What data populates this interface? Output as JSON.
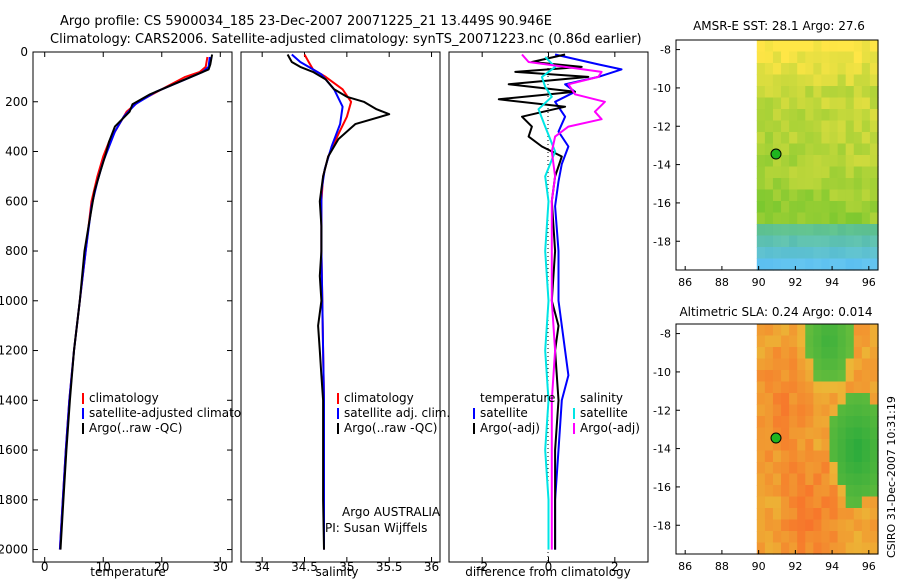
{
  "header": {
    "line1": "Argo profile: CS 5900034_185 23-Dec-2007 20071225_21 13.449S 90.946E",
    "line2": "Climatology: CARS2006. Satellite-adjusted climatology: synTS_20071223.nc (0.86d earlier)"
  },
  "colors": {
    "climatology": "#ff0000",
    "satellite": "#0000ff",
    "argo": "#000000",
    "sal_satellite": "#00e5e5",
    "sal_argo": "#ff00ff"
  },
  "chart_data": [
    {
      "id": "temperature",
      "type": "line",
      "xlabel": "temperature",
      "xlim": [
        -2,
        32
      ],
      "ylim": [
        0,
        2050
      ],
      "xticks": [
        0,
        10,
        20,
        30
      ],
      "yticks": [
        0,
        200,
        400,
        600,
        800,
        1000,
        1200,
        1400,
        1600,
        1800,
        2000
      ],
      "legend": [
        "climatology",
        "satellite-adjusted climatology",
        "Argo(..raw -QC)"
      ],
      "series": [
        {
          "name": "climatology",
          "color": "#ff0000",
          "points": [
            [
              27.8,
              20
            ],
            [
              27.5,
              60
            ],
            [
              26.5,
              80
            ],
            [
              24,
              100
            ],
            [
              20,
              150
            ],
            [
              16,
              200
            ],
            [
              14,
              240
            ],
            [
              12.5,
              300
            ],
            [
              11,
              360
            ],
            [
              10,
              420
            ],
            [
              9,
              500
            ],
            [
              8,
              600
            ],
            [
              7,
              800
            ],
            [
              6,
              1000
            ],
            [
              5,
              1200
            ],
            [
              4.2,
              1400
            ],
            [
              3.6,
              1600
            ],
            [
              3.1,
              1800
            ],
            [
              2.6,
              2000
            ]
          ]
        },
        {
          "name": "satellite-adjusted climatology",
          "color": "#0000ff",
          "points": [
            [
              28.2,
              20
            ],
            [
              28,
              60
            ],
            [
              27,
              80
            ],
            [
              24,
              110
            ],
            [
              19,
              160
            ],
            [
              15.5,
              210
            ],
            [
              13.5,
              260
            ],
            [
              12,
              320
            ],
            [
              11,
              380
            ],
            [
              10,
              440
            ],
            [
              9,
              520
            ],
            [
              8,
              620
            ],
            [
              7,
              800
            ],
            [
              6,
              1000
            ],
            [
              5,
              1200
            ],
            [
              4.2,
              1400
            ],
            [
              3.6,
              1600
            ],
            [
              3.1,
              1800
            ],
            [
              2.6,
              2000
            ]
          ]
        },
        {
          "name": "Argo(..raw -QC)",
          "color": "#000000",
          "points": [
            [
              28.6,
              10
            ],
            [
              28.3,
              50
            ],
            [
              28,
              70
            ],
            [
              26,
              90
            ],
            [
              22,
              130
            ],
            [
              18,
              170
            ],
            [
              15,
              210
            ],
            [
              14.5,
              240
            ],
            [
              12,
              300
            ],
            [
              11,
              360
            ],
            [
              10.3,
              420
            ],
            [
              9.5,
              480
            ],
            [
              8.5,
              560
            ],
            [
              7.5,
              700
            ],
            [
              6.8,
              800
            ],
            [
              6,
              1000
            ],
            [
              5,
              1200
            ],
            [
              4.3,
              1400
            ],
            [
              3.7,
              1600
            ],
            [
              3.2,
              1800
            ],
            [
              2.7,
              2000
            ]
          ]
        }
      ]
    },
    {
      "id": "salinity",
      "type": "line",
      "xlabel": "salinity",
      "xlim": [
        33.75,
        36.1
      ],
      "ylim": [
        0,
        2050
      ],
      "xticks": [
        34,
        34.5,
        35,
        35.5,
        36
      ],
      "legend": [
        "climatology",
        "satellite adj. clim.",
        "Argo(..raw -QC)"
      ],
      "series": [
        {
          "name": "climatology",
          "color": "#ff0000",
          "points": [
            [
              34.5,
              10
            ],
            [
              34.55,
              40
            ],
            [
              34.6,
              70
            ],
            [
              34.75,
              100
            ],
            [
              34.95,
              150
            ],
            [
              35.05,
              200
            ],
            [
              35,
              260
            ],
            [
              34.9,
              330
            ],
            [
              34.78,
              420
            ],
            [
              34.72,
              500
            ],
            [
              34.7,
              600
            ],
            [
              34.7,
              800
            ],
            [
              34.71,
              1000
            ],
            [
              34.72,
              1200
            ],
            [
              34.73,
              1400
            ],
            [
              34.73,
              1600
            ],
            [
              34.73,
              1800
            ],
            [
              34.73,
              2000
            ]
          ]
        },
        {
          "name": "satellite adj. clim.",
          "color": "#0000ff",
          "points": [
            [
              34.35,
              10
            ],
            [
              34.45,
              40
            ],
            [
              34.55,
              60
            ],
            [
              34.7,
              90
            ],
            [
              34.85,
              150
            ],
            [
              34.95,
              220
            ],
            [
              34.92,
              290
            ],
            [
              34.82,
              380
            ],
            [
              34.74,
              470
            ],
            [
              34.7,
              560
            ],
            [
              34.7,
              700
            ],
            [
              34.7,
              800
            ],
            [
              34.71,
              1000
            ],
            [
              34.72,
              1200
            ],
            [
              34.73,
              1400
            ],
            [
              34.73,
              1600
            ],
            [
              34.73,
              1800
            ],
            [
              34.73,
              2000
            ]
          ]
        },
        {
          "name": "Argo(..raw -QC)",
          "color": "#000000",
          "points": [
            [
              34.3,
              10
            ],
            [
              34.35,
              40
            ],
            [
              34.45,
              60
            ],
            [
              34.6,
              80
            ],
            [
              34.75,
              110
            ],
            [
              34.85,
              150
            ],
            [
              35,
              180
            ],
            [
              35.2,
              200
            ],
            [
              35.35,
              230
            ],
            [
              35.5,
              250
            ],
            [
              35.1,
              290
            ],
            [
              34.9,
              350
            ],
            [
              34.78,
              420
            ],
            [
              34.72,
              500
            ],
            [
              34.68,
              600
            ],
            [
              34.7,
              700
            ],
            [
              34.7,
              800
            ],
            [
              34.68,
              900
            ],
            [
              34.7,
              1000
            ],
            [
              34.66,
              1100
            ],
            [
              34.68,
              1200
            ],
            [
              34.7,
              1300
            ],
            [
              34.72,
              1400
            ],
            [
              34.72,
              1600
            ],
            [
              34.72,
              1800
            ],
            [
              34.73,
              2000
            ]
          ]
        }
      ],
      "annotation": [
        "Argo AUSTRALIA",
        "PI: Susan Wijffels"
      ]
    },
    {
      "id": "difference",
      "type": "line",
      "xlabel": "difference from climatology",
      "xlim": [
        -3,
        3
      ],
      "ylim": [
        0,
        2050
      ],
      "xticks": [
        -2,
        0,
        2
      ],
      "legend_left": [
        "temperature",
        "satellite",
        "Argo(-adj)"
      ],
      "legend_right": [
        "salinity",
        "satellite",
        "Argo(-adj)"
      ],
      "series": [
        {
          "name": "temperature satellite",
          "color": "#0000ff",
          "points": [
            [
              0.2,
              10
            ],
            [
              1.5,
              50
            ],
            [
              2.2,
              70
            ],
            [
              1.5,
              100
            ],
            [
              0.5,
              130
            ],
            [
              0.8,
              160
            ],
            [
              0.2,
              200
            ],
            [
              0.5,
              260
            ],
            [
              0.3,
              320
            ],
            [
              0.6,
              380
            ],
            [
              0.4,
              450
            ],
            [
              0.3,
              520
            ],
            [
              0.2,
              620
            ],
            [
              0.3,
              800
            ],
            [
              0.3,
              1000
            ],
            [
              0.5,
              1200
            ],
            [
              0.6,
              1300
            ],
            [
              0.4,
              1400
            ],
            [
              0.3,
              1600
            ],
            [
              0.2,
              1800
            ],
            [
              0.2,
              2000
            ]
          ]
        },
        {
          "name": "temperature Argo(-adj)",
          "color": "#000000",
          "points": [
            [
              0.5,
              10
            ],
            [
              -0.5,
              40
            ],
            [
              1,
              60
            ],
            [
              -1,
              80
            ],
            [
              1.2,
              100
            ],
            [
              -1.2,
              130
            ],
            [
              0.8,
              160
            ],
            [
              -1.5,
              190
            ],
            [
              0.5,
              220
            ],
            [
              -0.8,
              260
            ],
            [
              -0.5,
              300
            ],
            [
              -0.6,
              340
            ],
            [
              -0.2,
              380
            ],
            [
              0.4,
              420
            ],
            [
              0.2,
              500
            ],
            [
              0.1,
              600
            ],
            [
              0.2,
              800
            ],
            [
              0.1,
              1000
            ],
            [
              0.3,
              1100
            ],
            [
              0.2,
              1200
            ],
            [
              0.3,
              1400
            ],
            [
              0.2,
              1600
            ],
            [
              0.2,
              1800
            ],
            [
              0.2,
              2000
            ]
          ]
        },
        {
          "name": "salinity satellite",
          "color": "#00e5e5",
          "points": [
            [
              -0.1,
              20
            ],
            [
              0.2,
              60
            ],
            [
              -0.2,
              100
            ],
            [
              -0.1,
              140
            ],
            [
              0.1,
              180
            ],
            [
              -0.3,
              230
            ],
            [
              -0.1,
              300
            ],
            [
              0.2,
              400
            ],
            [
              -0.1,
              500
            ],
            [
              0,
              600
            ],
            [
              -0.1,
              800
            ],
            [
              0,
              1000
            ],
            [
              -0.1,
              1200
            ],
            [
              0,
              1400
            ],
            [
              -0.1,
              1600
            ],
            [
              0,
              1800
            ],
            [
              0,
              2000
            ]
          ]
        },
        {
          "name": "salinity Argo(-adj)",
          "color": "#ff00ff",
          "points": [
            [
              -0.8,
              10
            ],
            [
              -0.6,
              40
            ],
            [
              0.5,
              60
            ],
            [
              1.6,
              80
            ],
            [
              1.5,
              100
            ],
            [
              0.6,
              130
            ],
            [
              0.8,
              170
            ],
            [
              1.7,
              200
            ],
            [
              1.4,
              240
            ],
            [
              1.6,
              270
            ],
            [
              0.6,
              300
            ],
            [
              0.2,
              340
            ],
            [
              0.1,
              400
            ],
            [
              0.2,
              500
            ],
            [
              0.1,
              600
            ],
            [
              0.1,
              800
            ],
            [
              0.1,
              1000
            ],
            [
              0.2,
              1200
            ],
            [
              0.1,
              1400
            ],
            [
              0.1,
              1600
            ],
            [
              0.1,
              1800
            ],
            [
              0.1,
              2000
            ]
          ]
        }
      ]
    },
    {
      "id": "sst_map",
      "type": "heatmap",
      "title": "AMSR-E SST: 28.1 Argo: 27.6",
      "xlim": [
        85.5,
        96.5
      ],
      "ylim": [
        -19.5,
        -7.5
      ],
      "xticks": [
        86,
        88,
        90,
        92,
        94,
        96
      ],
      "yticks": [
        -8,
        -10,
        -12,
        -14,
        -16,
        -18
      ],
      "data_start_lon": 89.9,
      "marker": {
        "lon": 90.946,
        "lat": -13.449,
        "color": "#1fb51f"
      }
    },
    {
      "id": "sla_map",
      "type": "heatmap",
      "title": "Altimetric SLA: 0.24 Argo: 0.014",
      "xlim": [
        85.5,
        96.5
      ],
      "ylim": [
        -19.5,
        -7.5
      ],
      "xticks": [
        86,
        88,
        90,
        92,
        94,
        96
      ],
      "yticks": [
        -8,
        -10,
        -12,
        -14,
        -16,
        -18
      ],
      "data_start_lon": 89.9,
      "marker": {
        "lon": 90.946,
        "lat": -13.449,
        "color": "#1fb51f"
      }
    }
  ],
  "footer": {
    "stamp": "CSIRO 31-Dec-2007 10:31:19"
  }
}
